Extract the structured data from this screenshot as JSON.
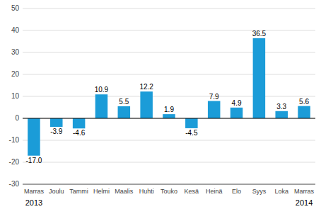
{
  "chart_data": {
    "type": "bar",
    "categories": [
      "Marras",
      "Joulu",
      "Tammi",
      "Helmi",
      "Maalis",
      "Huhti",
      "Touko",
      "Kesä",
      "Heinä",
      "Elo",
      "Syys",
      "Loka",
      "Marras"
    ],
    "values": [
      -17.0,
      -3.9,
      -4.6,
      10.9,
      5.5,
      12.2,
      1.9,
      -4.5,
      7.9,
      4.9,
      36.5,
      3.3,
      5.6
    ],
    "value_labels": [
      "-17.0",
      "-3.9",
      "-4.6",
      "10.9",
      "5.5",
      "12.2",
      "1.9",
      "-4.5",
      "7.9",
      "4.9",
      "36.5",
      "3.3",
      "5.6"
    ],
    "color": "#1b9cd8",
    "ylim": [
      -30,
      50
    ],
    "yticks": [
      -30,
      -20,
      -10,
      0,
      10,
      20,
      30,
      40,
      50
    ],
    "grid": true,
    "data_labels": true,
    "annotations": [
      {
        "text": "2013",
        "category": 0
      },
      {
        "text": "2014",
        "category": 12
      }
    ]
  }
}
